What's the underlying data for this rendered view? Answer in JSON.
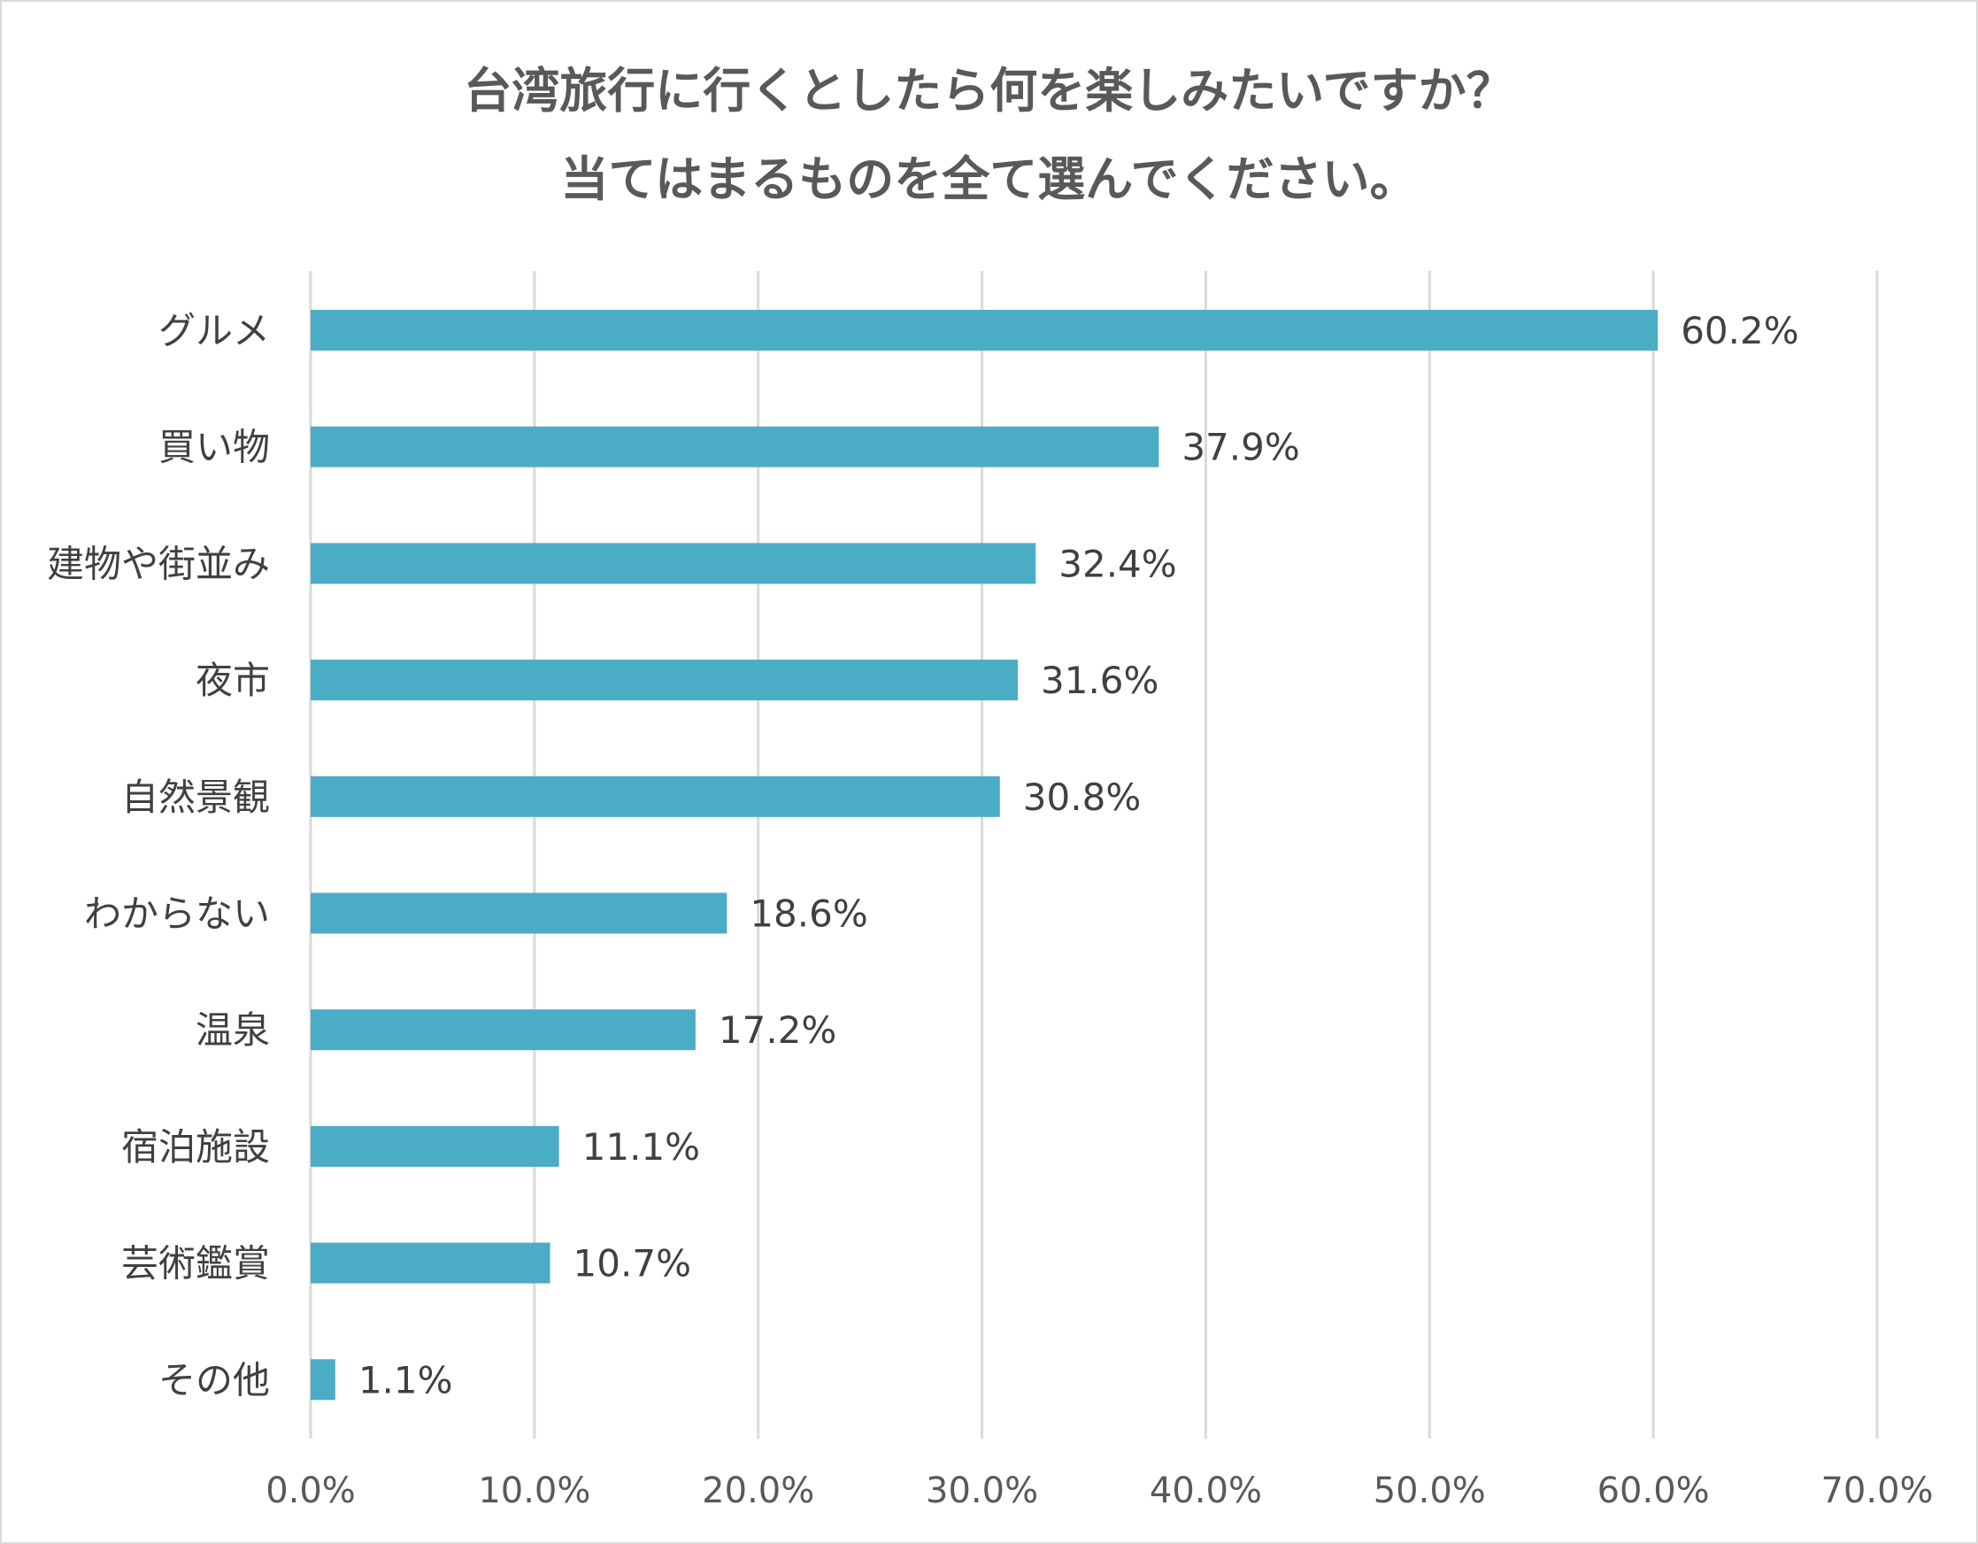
{
  "chart_data": {
    "type": "bar",
    "orientation": "horizontal",
    "title_lines": [
      "台湾旅行に行くとしたら何を楽しみたいですか？",
      "当てはまるものを全て選んでください。"
    ],
    "categories": [
      "グルメ",
      "買い物",
      "建物や街並み",
      "夜市",
      "自然景観",
      "わからない",
      "温泉",
      "宿泊施設",
      "芸術鑑賞",
      "その他"
    ],
    "values": [
      60.2,
      37.9,
      32.4,
      31.6,
      30.8,
      18.6,
      17.2,
      11.1,
      10.7,
      1.1
    ],
    "data_labels": [
      "60.2%",
      "37.9%",
      "32.4%",
      "31.6%",
      "30.8%",
      "18.6%",
      "17.2%",
      "11.1%",
      "10.7%",
      "1.1%"
    ],
    "xticks": [
      "0.0%",
      "10.0%",
      "20.0%",
      "30.0%",
      "40.0%",
      "50.0%",
      "60.0%",
      "70.0%"
    ],
    "xlim": [
      0,
      70
    ],
    "grid": "vertical",
    "bar_color": "#4BACC6",
    "xlabel": "",
    "ylabel": ""
  }
}
